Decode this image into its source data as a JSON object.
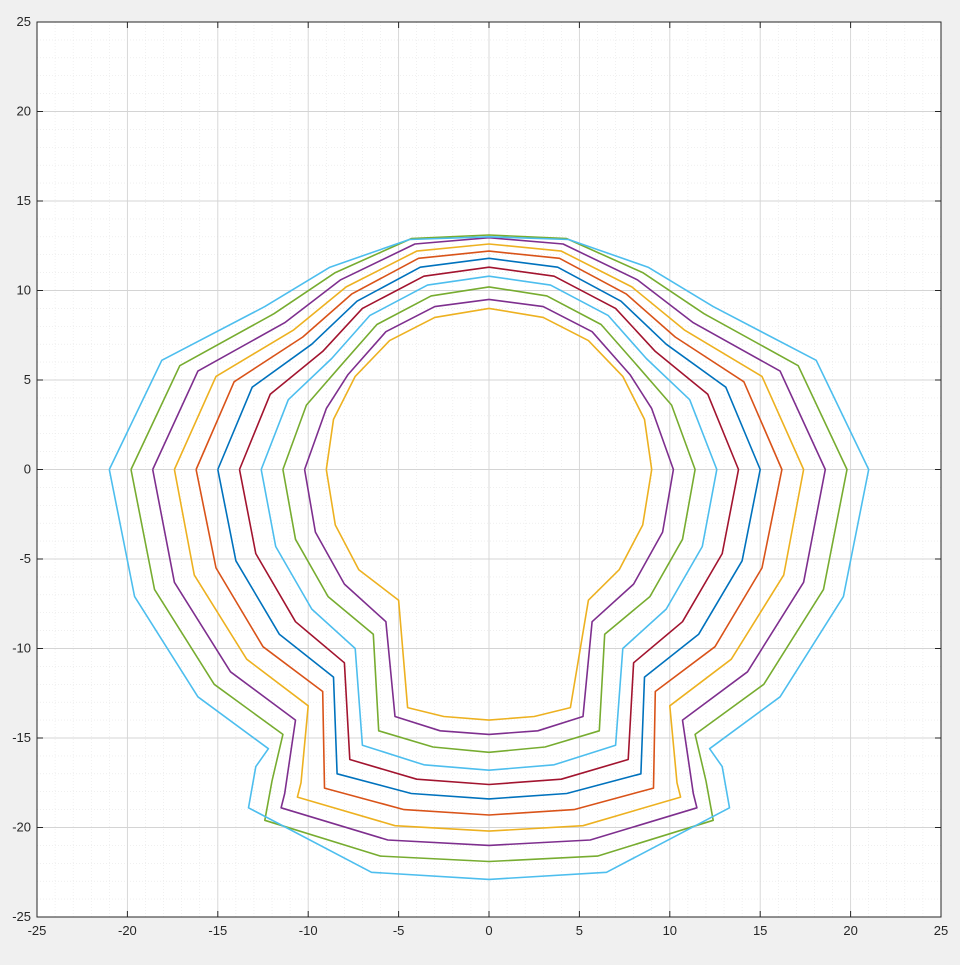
{
  "chart_data": {
    "type": "line",
    "title": "",
    "xlabel": "",
    "ylabel": "",
    "xlim": [
      -25,
      25
    ],
    "ylim": [
      -25,
      25
    ],
    "grid": true,
    "minor_grid": true,
    "aspect": "equal",
    "x_ticks": [
      -25,
      -20,
      -15,
      -10,
      -5,
      0,
      5,
      10,
      15,
      20,
      25
    ],
    "y_ticks": [
      25,
      20,
      15,
      10,
      5,
      0,
      -5,
      -10,
      -15,
      -20,
      -25
    ],
    "x_tick_labels": [
      "-25",
      "-20",
      "-15",
      "-10",
      "-5",
      "0",
      "5",
      "10",
      "15",
      "20",
      "25"
    ],
    "y_tick_labels": [
      "25",
      "20",
      "15",
      "10",
      "5",
      "0",
      "-5",
      "-10",
      "-15",
      "-20",
      "-25"
    ],
    "series": [
      {
        "color": "#EDB120",
        "points": [
          [
            -9,
            0
          ],
          [
            -8.6,
            2.8
          ],
          [
            -7.4,
            5.2
          ],
          [
            -5.5,
            7.2
          ],
          [
            -3,
            8.5
          ],
          [
            0,
            9
          ],
          [
            3,
            8.5
          ],
          [
            5.5,
            7.2
          ],
          [
            7.4,
            5.2
          ],
          [
            8.6,
            2.8
          ],
          [
            9,
            0
          ],
          [
            8.5,
            -3.1
          ],
          [
            7.2,
            -5.6
          ],
          [
            5.5,
            -7.3
          ],
          [
            4.5,
            -13.3
          ],
          [
            2.5,
            -13.8
          ],
          [
            0,
            -14
          ],
          [
            -2.5,
            -13.8
          ],
          [
            -4.5,
            -13.3
          ],
          [
            -5,
            -7.3
          ],
          [
            -7.2,
            -5.6
          ],
          [
            -8.5,
            -3.1
          ],
          [
            -9,
            0
          ]
        ]
      },
      {
        "color": "#7E2F8E",
        "points": [
          [
            -10.2,
            0
          ],
          [
            -9,
            3.4
          ],
          [
            -7.8,
            5.3
          ],
          [
            -5.7,
            7.7
          ],
          [
            -3,
            9.1
          ],
          [
            0,
            9.5
          ],
          [
            3,
            9.1
          ],
          [
            5.7,
            7.7
          ],
          [
            7.8,
            5.3
          ],
          [
            9,
            3.4
          ],
          [
            10.2,
            0
          ],
          [
            9.6,
            -3.5
          ],
          [
            8,
            -6.4
          ],
          [
            5.7,
            -8.5
          ],
          [
            5.2,
            -13.8
          ],
          [
            2.7,
            -14.6
          ],
          [
            0,
            -14.8
          ],
          [
            -2.7,
            -14.6
          ],
          [
            -5.2,
            -13.8
          ],
          [
            -5.7,
            -8.5
          ],
          [
            -8,
            -6.4
          ],
          [
            -9.6,
            -3.5
          ],
          [
            -10.2,
            0
          ]
        ]
      },
      {
        "color": "#77AC30",
        "points": [
          [
            -11.4,
            0
          ],
          [
            -10.1,
            3.6
          ],
          [
            -8.2,
            5.8
          ],
          [
            -6.2,
            8.1
          ],
          [
            -3.2,
            9.7
          ],
          [
            0,
            10.2
          ],
          [
            3.2,
            9.7
          ],
          [
            6.2,
            8.1
          ],
          [
            8.2,
            5.8
          ],
          [
            10.1,
            3.6
          ],
          [
            11.4,
            0
          ],
          [
            10.7,
            -3.9
          ],
          [
            8.9,
            -7.1
          ],
          [
            6.4,
            -9.2
          ],
          [
            6.1,
            -14.6
          ],
          [
            3.1,
            -15.5
          ],
          [
            0,
            -15.8
          ],
          [
            -3.1,
            -15.5
          ],
          [
            -6.1,
            -14.6
          ],
          [
            -6.4,
            -9.2
          ],
          [
            -8.9,
            -7.1
          ],
          [
            -10.7,
            -3.9
          ],
          [
            -11.4,
            0
          ]
        ]
      },
      {
        "color": "#4DBEEE",
        "points": [
          [
            -12.6,
            0
          ],
          [
            -11.1,
            3.9
          ],
          [
            -8.7,
            6.2
          ],
          [
            -6.6,
            8.6
          ],
          [
            -3.4,
            10.3
          ],
          [
            0,
            10.8
          ],
          [
            3.4,
            10.3
          ],
          [
            6.6,
            8.6
          ],
          [
            8.7,
            6.2
          ],
          [
            11.1,
            3.9
          ],
          [
            12.6,
            0
          ],
          [
            11.8,
            -4.3
          ],
          [
            9.8,
            -7.8
          ],
          [
            7.4,
            -10
          ],
          [
            7,
            -15.4
          ],
          [
            3.6,
            -16.5
          ],
          [
            0,
            -16.8
          ],
          [
            -3.6,
            -16.5
          ],
          [
            -7,
            -15.4
          ],
          [
            -7.4,
            -10
          ],
          [
            -9.8,
            -7.8
          ],
          [
            -11.8,
            -4.3
          ],
          [
            -12.6,
            0
          ]
        ]
      },
      {
        "color": "#A2142F",
        "points": [
          [
            -13.8,
            0
          ],
          [
            -12.1,
            4.2
          ],
          [
            -9.2,
            6.6
          ],
          [
            -7,
            9
          ],
          [
            -3.6,
            10.8
          ],
          [
            0,
            11.3
          ],
          [
            3.6,
            10.8
          ],
          [
            7,
            9
          ],
          [
            9.2,
            6.6
          ],
          [
            12.1,
            4.2
          ],
          [
            13.8,
            0
          ],
          [
            12.9,
            -4.7
          ],
          [
            10.7,
            -8.5
          ],
          [
            8,
            -10.8
          ],
          [
            7.7,
            -16.2
          ],
          [
            4,
            -17.3
          ],
          [
            0,
            -17.6
          ],
          [
            -4,
            -17.3
          ],
          [
            -7.7,
            -16.2
          ],
          [
            -8,
            -10.8
          ],
          [
            -10.7,
            -8.5
          ],
          [
            -12.9,
            -4.7
          ],
          [
            -13.8,
            0
          ]
        ]
      },
      {
        "color": "#0072BD",
        "points": [
          [
            -15,
            0
          ],
          [
            -13.1,
            4.6
          ],
          [
            -9.8,
            7
          ],
          [
            -7.3,
            9.4
          ],
          [
            -3.8,
            11.3
          ],
          [
            0,
            11.8
          ],
          [
            3.8,
            11.3
          ],
          [
            7.3,
            9.4
          ],
          [
            9.8,
            7
          ],
          [
            13.1,
            4.6
          ],
          [
            15,
            0
          ],
          [
            14,
            -5.1
          ],
          [
            11.6,
            -9.2
          ],
          [
            8.6,
            -11.6
          ],
          [
            8.4,
            -17
          ],
          [
            4.3,
            -18.1
          ],
          [
            0,
            -18.4
          ],
          [
            -4.3,
            -18.1
          ],
          [
            -8.4,
            -17
          ],
          [
            -8.6,
            -11.6
          ],
          [
            -11.6,
            -9.2
          ],
          [
            -14,
            -5.1
          ],
          [
            -15,
            0
          ]
        ]
      },
      {
        "color": "#D95319",
        "points": [
          [
            -16.2,
            0
          ],
          [
            -14.1,
            4.9
          ],
          [
            -10.3,
            7.4
          ],
          [
            -7.6,
            9.8
          ],
          [
            -3.9,
            11.8
          ],
          [
            0,
            12.2
          ],
          [
            3.9,
            11.8
          ],
          [
            7.6,
            9.8
          ],
          [
            10.3,
            7.4
          ],
          [
            14.1,
            4.9
          ],
          [
            16.2,
            0
          ],
          [
            15.1,
            -5.5
          ],
          [
            12.5,
            -9.9
          ],
          [
            9.2,
            -12.4
          ],
          [
            9.1,
            -17.8
          ],
          [
            4.7,
            -19
          ],
          [
            0,
            -19.3
          ],
          [
            -4.7,
            -19
          ],
          [
            -9.1,
            -17.8
          ],
          [
            -9.2,
            -12.4
          ],
          [
            -12.5,
            -9.9
          ],
          [
            -15.1,
            -5.5
          ],
          [
            -16.2,
            0
          ]
        ]
      },
      {
        "color": "#EDB120",
        "points": [
          [
            -17.4,
            0
          ],
          [
            -15.1,
            5.2
          ],
          [
            -10.8,
            7.8
          ],
          [
            -7.9,
            10.2
          ],
          [
            -4,
            12.2
          ],
          [
            0,
            12.6
          ],
          [
            4,
            12.2
          ],
          [
            7.9,
            10.2
          ],
          [
            10.8,
            7.8
          ],
          [
            15.1,
            5.2
          ],
          [
            17.4,
            0
          ],
          [
            16.3,
            -5.9
          ],
          [
            13.4,
            -10.6
          ],
          [
            10,
            -13.2
          ],
          [
            10.4,
            -17.5
          ],
          [
            10.6,
            -18.3
          ],
          [
            5.2,
            -19.9
          ],
          [
            0,
            -20.2
          ],
          [
            -5.2,
            -19.9
          ],
          [
            -10.6,
            -18.3
          ],
          [
            -10.4,
            -17.5
          ],
          [
            -10,
            -13.2
          ],
          [
            -13.4,
            -10.6
          ],
          [
            -16.3,
            -5.9
          ],
          [
            -17.4,
            0
          ]
        ]
      },
      {
        "color": "#7E2F8E",
        "points": [
          [
            -18.6,
            0
          ],
          [
            -16.1,
            5.5
          ],
          [
            -11.3,
            8.2
          ],
          [
            -8.2,
            10.6
          ],
          [
            -4.1,
            12.6
          ],
          [
            0,
            12.95
          ],
          [
            4.1,
            12.6
          ],
          [
            8.2,
            10.6
          ],
          [
            11.3,
            8.2
          ],
          [
            16.1,
            5.5
          ],
          [
            18.6,
            0
          ],
          [
            17.4,
            -6.3
          ],
          [
            14.3,
            -11.3
          ],
          [
            10.7,
            -14
          ],
          [
            11.3,
            -18.1
          ],
          [
            11.5,
            -18.9
          ],
          [
            5.6,
            -20.7
          ],
          [
            0,
            -21
          ],
          [
            -5.6,
            -20.7
          ],
          [
            -11.5,
            -18.9
          ],
          [
            -11.3,
            -18.1
          ],
          [
            -10.7,
            -14
          ],
          [
            -14.3,
            -11.3
          ],
          [
            -17.4,
            -6.3
          ],
          [
            -18.6,
            0
          ]
        ]
      },
      {
        "color": "#77AC30",
        "points": [
          [
            -19.8,
            0
          ],
          [
            -17.1,
            5.8
          ],
          [
            -11.9,
            8.7
          ],
          [
            -8.5,
            11
          ],
          [
            -4.3,
            12.9
          ],
          [
            0,
            13.1
          ],
          [
            4.3,
            12.9
          ],
          [
            8.5,
            11
          ],
          [
            11.9,
            8.7
          ],
          [
            17.1,
            5.8
          ],
          [
            19.8,
            0
          ],
          [
            18.5,
            -6.7
          ],
          [
            15.2,
            -12
          ],
          [
            11.4,
            -14.8
          ],
          [
            12,
            -17.4
          ],
          [
            12.4,
            -19.6
          ],
          [
            6,
            -21.6
          ],
          [
            0,
            -21.9
          ],
          [
            -6,
            -21.6
          ],
          [
            -12.4,
            -19.6
          ],
          [
            -12,
            -17.4
          ],
          [
            -11.4,
            -14.8
          ],
          [
            -15.2,
            -12
          ],
          [
            -18.5,
            -6.7
          ],
          [
            -19.8,
            0
          ]
        ]
      },
      {
        "color": "#4DBEEE",
        "points": [
          [
            -21,
            0
          ],
          [
            -18.1,
            6.1
          ],
          [
            -12.4,
            9.1
          ],
          [
            -8.8,
            11.3
          ],
          [
            -4.4,
            12.85
          ],
          [
            0,
            13
          ],
          [
            4.4,
            12.85
          ],
          [
            8.8,
            11.3
          ],
          [
            12.4,
            9.1
          ],
          [
            18.1,
            6.1
          ],
          [
            21,
            0
          ],
          [
            19.6,
            -7.1
          ],
          [
            16.1,
            -12.7
          ],
          [
            12.2,
            -15.6
          ],
          [
            12.9,
            -16.6
          ],
          [
            13.3,
            -18.9
          ],
          [
            6.5,
            -22.5
          ],
          [
            0,
            -22.9
          ],
          [
            -6.5,
            -22.5
          ],
          [
            -13.3,
            -18.9
          ],
          [
            -12.9,
            -16.6
          ],
          [
            -12.2,
            -15.6
          ],
          [
            -16.1,
            -12.7
          ],
          [
            -19.6,
            -7.1
          ],
          [
            -21,
            0
          ]
        ]
      }
    ]
  }
}
